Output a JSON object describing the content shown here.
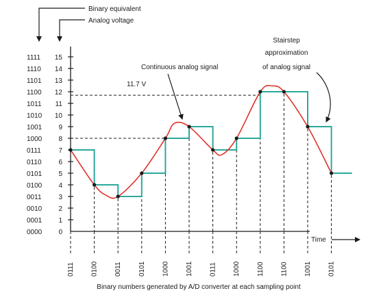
{
  "legend": {
    "binary_equivalent": "Binary equivalent",
    "analog_voltage": "Analog voltage"
  },
  "annotations": {
    "continuous_signal": "Continuous analog signal",
    "stairstep_line1": "Stairstep",
    "stairstep_line2": "approximation",
    "stairstep_line3": "of analog signal",
    "voltage_marker": "11.7 V",
    "time_label": "Time",
    "bottom_caption": "Binary numbers generated by A/D converter at each sampling point"
  },
  "y_axis": {
    "ticks": [
      {
        "value": 0,
        "binary": "0000"
      },
      {
        "value": 1,
        "binary": "0001"
      },
      {
        "value": 2,
        "binary": "0010"
      },
      {
        "value": 3,
        "binary": "0011"
      },
      {
        "value": 4,
        "binary": "0100"
      },
      {
        "value": 5,
        "binary": "0101"
      },
      {
        "value": 6,
        "binary": "0110"
      },
      {
        "value": 7,
        "binary": "0111"
      },
      {
        "value": 8,
        "binary": "1000"
      },
      {
        "value": 9,
        "binary": "1001"
      },
      {
        "value": 10,
        "binary": "1010"
      },
      {
        "value": 11,
        "binary": "1011"
      },
      {
        "value": 12,
        "binary": "1100"
      },
      {
        "value": 13,
        "binary": "1101"
      },
      {
        "value": 14,
        "binary": "1110"
      },
      {
        "value": 15,
        "binary": "1111"
      }
    ]
  },
  "samples": [
    {
      "binary": "0111",
      "value": 7
    },
    {
      "binary": "0100",
      "value": 4
    },
    {
      "binary": "0011",
      "value": 3
    },
    {
      "binary": "0101",
      "value": 5
    },
    {
      "binary": "1000",
      "value": 8
    },
    {
      "binary": "1001",
      "value": 9
    },
    {
      "binary": "0111",
      "value": 7
    },
    {
      "binary": "1000",
      "value": 8
    },
    {
      "binary": "1100",
      "value": 12
    },
    {
      "binary": "1100",
      "value": 12
    },
    {
      "binary": "1001",
      "value": 9
    },
    {
      "binary": "0101",
      "value": 5
    }
  ],
  "colors": {
    "analog_curve": "#e0322b",
    "stairstep": "#2aa89a",
    "axis": "#1a1a1a",
    "dots": "#1a1a1a"
  }
}
